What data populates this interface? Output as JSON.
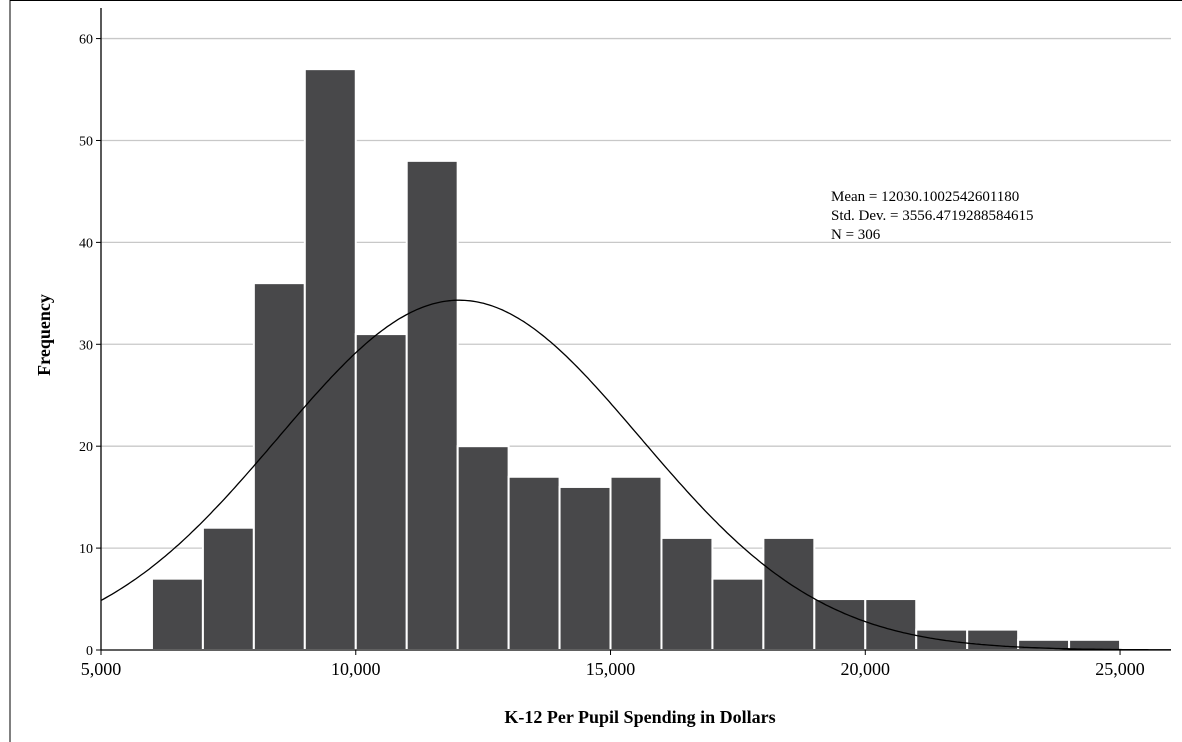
{
  "chart_data": {
    "type": "bar",
    "subtype": "histogram",
    "bin_edges": [
      6000,
      7000,
      8000,
      9000,
      10000,
      11000,
      12000,
      13000,
      14000,
      15000,
      16000,
      17000,
      18000,
      19000,
      20000,
      21000,
      22000,
      23000,
      24000,
      25000
    ],
    "frequencies": [
      7,
      12,
      36,
      57,
      31,
      48,
      20,
      17,
      16,
      17,
      11,
      7,
      11,
      5,
      5,
      2,
      2,
      1,
      1
    ],
    "xlabel": "K-12 Per Pupil Spending in Dollars",
    "ylabel": "Frequency",
    "xlim": [
      5000,
      26000
    ],
    "ylim": [
      0,
      63
    ],
    "x_ticks": [
      5000,
      10000,
      15000,
      20000,
      25000
    ],
    "x_tick_labels": [
      "5,000",
      "10,000",
      "15,000",
      "20,000",
      "25,000"
    ],
    "y_ticks": [
      0,
      10,
      20,
      30,
      40,
      50,
      60
    ],
    "y_tick_labels": [
      "0",
      "10",
      "20",
      "30",
      "40",
      "50",
      "60"
    ],
    "grid": "horizontal",
    "normal_curve": {
      "mean": 12030.100254260118,
      "std_dev": 3556.4719288584615,
      "n": 306,
      "bin_width": 1000
    },
    "stats_text": [
      "Mean = 12030.1002542601180",
      "Std. Dev. = 3556.4719288584615",
      "N = 306"
    ],
    "colors": {
      "bar": "#48484a",
      "bar_edge": "#ffffff",
      "grid": "#c8c8c8",
      "curve": "#000000",
      "axis": "#000000"
    }
  }
}
